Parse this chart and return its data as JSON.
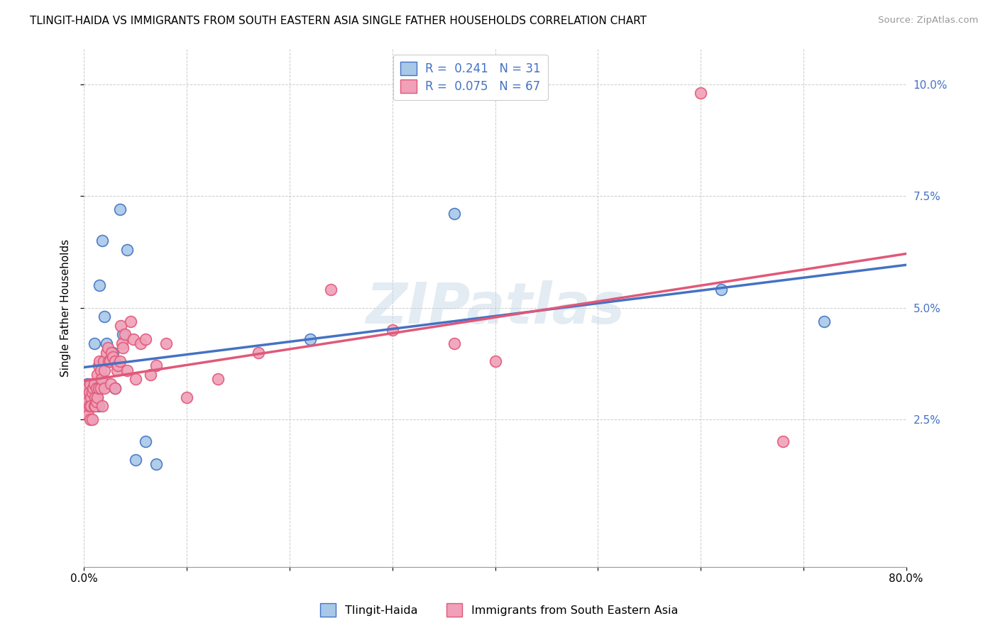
{
  "title": "TLINGIT-HAIDA VS IMMIGRANTS FROM SOUTH EASTERN ASIA SINGLE FATHER HOUSEHOLDS CORRELATION CHART",
  "source": "Source: ZipAtlas.com",
  "ylabel": "Single Father Households",
  "legend_label1": "Tlingit-Haida",
  "legend_label2": "Immigrants from South Eastern Asia",
  "r1": 0.241,
  "n1": 31,
  "r2": 0.075,
  "n2": 67,
  "xlim": [
    0.0,
    0.8
  ],
  "ylim": [
    -0.008,
    0.108
  ],
  "yticks": [
    0.025,
    0.05,
    0.075,
    0.1
  ],
  "yticklabels": [
    "2.5%",
    "5.0%",
    "7.5%",
    "10.0%"
  ],
  "color_blue": "#a8c8e8",
  "color_pink": "#f0a0b8",
  "line_blue": "#4472c4",
  "line_pink": "#e05878",
  "watermark": "ZIPatlas",
  "blue_x": [
    0.002,
    0.003,
    0.004,
    0.005,
    0.006,
    0.007,
    0.008,
    0.009,
    0.01,
    0.011,
    0.012,
    0.013,
    0.014,
    0.015,
    0.016,
    0.018,
    0.02,
    0.022,
    0.025,
    0.028,
    0.03,
    0.035,
    0.038,
    0.042,
    0.05,
    0.06,
    0.07,
    0.22,
    0.36,
    0.62,
    0.72
  ],
  "blue_y": [
    0.03,
    0.033,
    0.03,
    0.032,
    0.03,
    0.028,
    0.031,
    0.033,
    0.042,
    0.03,
    0.032,
    0.03,
    0.028,
    0.055,
    0.034,
    0.065,
    0.048,
    0.042,
    0.038,
    0.04,
    0.032,
    0.072,
    0.044,
    0.063,
    0.016,
    0.02,
    0.015,
    0.043,
    0.071,
    0.054,
    0.047
  ],
  "pink_x": [
    0.002,
    0.002,
    0.003,
    0.003,
    0.004,
    0.004,
    0.005,
    0.005,
    0.006,
    0.006,
    0.007,
    0.007,
    0.008,
    0.008,
    0.009,
    0.01,
    0.01,
    0.011,
    0.011,
    0.012,
    0.012,
    0.013,
    0.013,
    0.014,
    0.014,
    0.015,
    0.016,
    0.016,
    0.017,
    0.018,
    0.019,
    0.02,
    0.02,
    0.022,
    0.023,
    0.024,
    0.025,
    0.026,
    0.027,
    0.028,
    0.03,
    0.03,
    0.032,
    0.033,
    0.035,
    0.036,
    0.037,
    0.038,
    0.04,
    0.042,
    0.045,
    0.048,
    0.05,
    0.055,
    0.06,
    0.065,
    0.07,
    0.08,
    0.1,
    0.13,
    0.17,
    0.24,
    0.3,
    0.36,
    0.4,
    0.6,
    0.68
  ],
  "pink_y": [
    0.03,
    0.028,
    0.032,
    0.027,
    0.029,
    0.026,
    0.031,
    0.028,
    0.033,
    0.025,
    0.03,
    0.028,
    0.031,
    0.025,
    0.032,
    0.028,
    0.033,
    0.03,
    0.028,
    0.032,
    0.029,
    0.035,
    0.03,
    0.037,
    0.032,
    0.038,
    0.036,
    0.032,
    0.034,
    0.028,
    0.038,
    0.036,
    0.032,
    0.04,
    0.041,
    0.038,
    0.038,
    0.033,
    0.04,
    0.039,
    0.038,
    0.032,
    0.036,
    0.037,
    0.038,
    0.046,
    0.042,
    0.041,
    0.044,
    0.036,
    0.047,
    0.043,
    0.034,
    0.042,
    0.043,
    0.035,
    0.037,
    0.042,
    0.03,
    0.034,
    0.04,
    0.054,
    0.045,
    0.042,
    0.038,
    0.098,
    0.02
  ]
}
